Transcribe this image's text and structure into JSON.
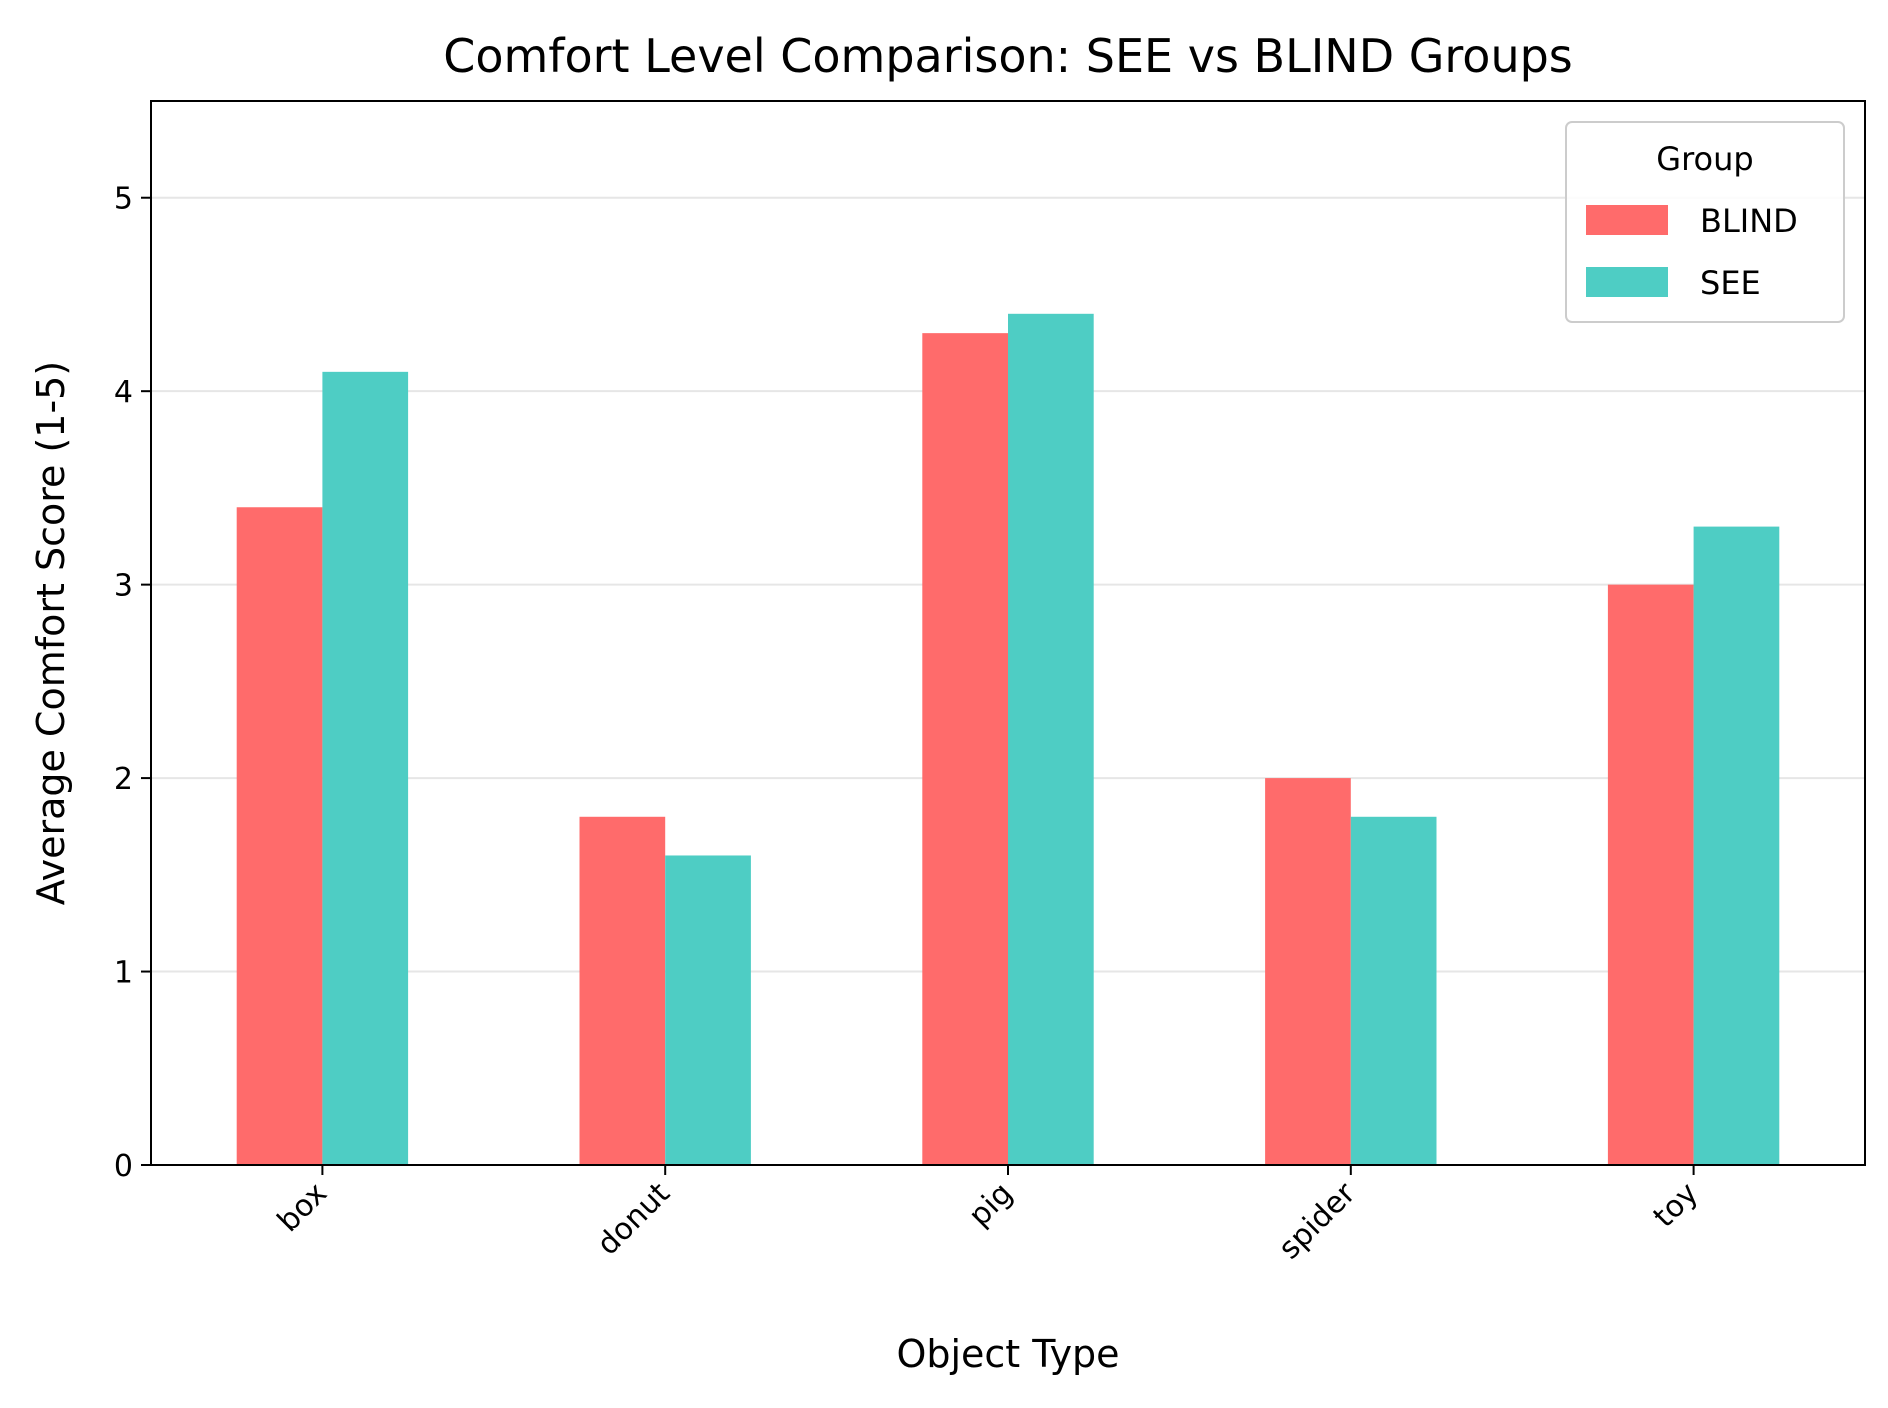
{
  "chart_data": {
    "type": "bar",
    "title": "Comfort Level Comparison: SEE vs BLIND Groups",
    "xlabel": "Object Type",
    "ylabel": "Average Comfort Score (1-5)",
    "categories": [
      "box",
      "donut",
      "pig",
      "spider",
      "toy"
    ],
    "series": [
      {
        "name": "BLIND",
        "color": "#FF6B6B",
        "values": [
          3.4,
          1.8,
          4.3,
          2.0,
          3.0
        ]
      },
      {
        "name": "SEE",
        "color": "#4ECDC4",
        "values": [
          4.1,
          1.6,
          4.4,
          1.8,
          3.3
        ]
      }
    ],
    "ylim": [
      0,
      5.5
    ],
    "yticks": [
      0,
      1,
      2,
      3,
      4,
      5
    ],
    "grid": {
      "y": true,
      "x": false
    },
    "legend": {
      "title": "Group",
      "placement": "top-right"
    },
    "xtick_rotation": 45
  }
}
